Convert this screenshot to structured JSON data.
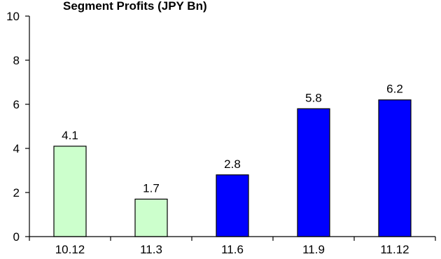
{
  "chart_data": {
    "type": "bar",
    "title": "Segment Profits (JPY Bn)",
    "xlabel": "",
    "ylabel": "",
    "categories": [
      "10.12",
      "11.3",
      "11.6",
      "11.9",
      "11.12"
    ],
    "values": [
      4.1,
      1.7,
      2.8,
      5.8,
      6.2
    ],
    "data_labels": [
      "4.1",
      "1.7",
      "2.8",
      "5.8",
      "6.2"
    ],
    "bar_colors": [
      "#ccffcc",
      "#ccffcc",
      "#0000ff",
      "#0000ff",
      "#0000ff"
    ],
    "ylim": [
      0,
      10
    ],
    "y_ticks": [
      0,
      2,
      4,
      6,
      8,
      10
    ],
    "y_tick_labels": [
      "0",
      "2",
      "4",
      "6",
      "8",
      "10"
    ],
    "grid": false,
    "legend": "none"
  }
}
